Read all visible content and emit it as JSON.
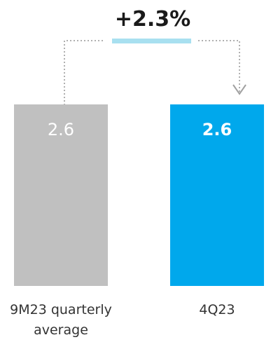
{
  "chart_data": {
    "type": "bar",
    "categories": [
      "9M23 quarterly average",
      "4Q23"
    ],
    "category_lines": [
      [
        "9M23 quarterly",
        "average"
      ],
      [
        "4Q23"
      ]
    ],
    "values": [
      2.6,
      2.6
    ],
    "value_labels": [
      "2.6",
      "2.6"
    ],
    "bar_colors": [
      "#c0c0c0",
      "#00a8ec"
    ],
    "value_label_colors": [
      "#ffffff",
      "#ffffff"
    ],
    "value_label_weights": [
      "normal",
      "bold"
    ],
    "change_label": "+2.3%",
    "change_bar_color": "#a8e0f0",
    "connector_color": "#b0b0b0",
    "title": "",
    "xlabel": "",
    "ylabel": "",
    "ylim": [
      0,
      2.65
    ],
    "grid": false,
    "legend": "none"
  }
}
